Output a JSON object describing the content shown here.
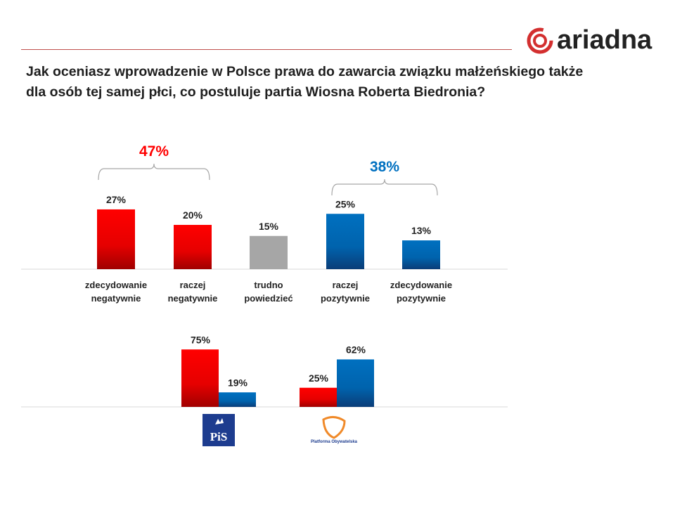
{
  "logo": {
    "text": "ariadna",
    "icon": "ariadna-swirl-logo",
    "color": "#d32f2f"
  },
  "title": "Jak oceniasz wprowadzenie w Polsce prawa do zawarcia związku małżeńskiego także dla osób tej samej płci, co postuluje partia Wiosna Roberta Biedronia?",
  "colors": {
    "negative": "#ff0000",
    "neutral": "#a6a6a6",
    "positive": "#0070c0",
    "sum_negative": "#ff0000",
    "sum_positive": "#0070c0"
  },
  "chart_data": [
    {
      "type": "bar",
      "categories": [
        "zdecydowanie negatywnie",
        "raczej negatywnie",
        "trudno powiedzieć",
        "raczej pozytywnie",
        "zdecydowanie pozytywnie"
      ],
      "category_lines": [
        [
          "zdecydowanie",
          "negatywnie"
        ],
        [
          "raczej",
          "negatywnie"
        ],
        [
          "trudno",
          "powiedzieć"
        ],
        [
          "raczej",
          "pozytywnie"
        ],
        [
          "zdecydowanie",
          "pozytywnie"
        ]
      ],
      "values": [
        27,
        20,
        15,
        25,
        13
      ],
      "labels": [
        "27%",
        "20%",
        "15%",
        "25%",
        "13%"
      ],
      "bar_colors": [
        "negative",
        "negative",
        "neutral",
        "positive",
        "positive"
      ],
      "annotations": [
        {
          "text": "47%",
          "spans": [
            0,
            1
          ],
          "color": "negative"
        },
        {
          "text": "38%",
          "spans": [
            3,
            4
          ],
          "color": "positive"
        }
      ]
    },
    {
      "type": "bar",
      "categories": [
        "PiS",
        "Platforma Obywatelska"
      ],
      "series": [
        {
          "color": "negative",
          "values": [
            75,
            25
          ],
          "labels": [
            "75%",
            "25%"
          ]
        },
        {
          "color": "positive",
          "values": [
            19,
            62
          ],
          "labels": [
            "19%",
            "62%"
          ]
        }
      ],
      "category_logos": [
        "pis-logo",
        "platforma-obywatelska-logo"
      ],
      "logo_text": [
        "PiS",
        "Platforma Obywatelska"
      ]
    }
  ]
}
